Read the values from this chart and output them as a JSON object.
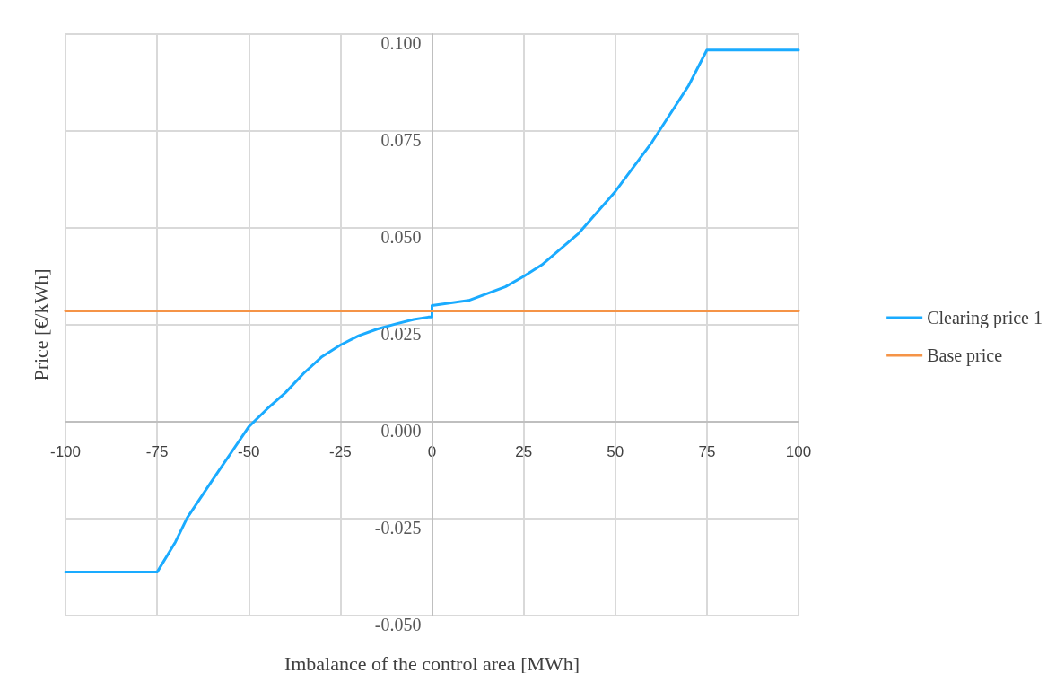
{
  "chart_data": {
    "type": "line",
    "xlabel": "Imbalance of the control area [MWh]",
    "ylabel": "Price [€/kWh]",
    "xlim": [
      -100,
      100
    ],
    "xticks": [
      -100,
      -75,
      -50,
      -25,
      0,
      25,
      50,
      75,
      100
    ],
    "ylim": [
      -0.05,
      0.1
    ],
    "yticks": [
      {
        "value": -0.05,
        "label": "-0.050"
      },
      {
        "value": -0.025,
        "label": "-0.025"
      },
      {
        "value": 0,
        "label": "0.000"
      },
      {
        "value": 0.025,
        "label": "0.025"
      },
      {
        "value": 0.05,
        "label": "0.050"
      },
      {
        "value": 0.075,
        "label": "0.075"
      },
      {
        "value": 0.1,
        "label": "0.100"
      }
    ],
    "grid": true,
    "legend": "right",
    "marker": "none",
    "line_style": "solid",
    "series": [
      {
        "name": "Clearing price 1",
        "color": "#1aabff",
        "x": [
          -100,
          -75,
          -70,
          -66.8,
          -60,
          -50,
          -45,
          -40,
          -35,
          -30,
          -25,
          -20,
          -15,
          -10,
          -5,
          -1,
          0,
          0,
          10,
          20,
          25,
          30,
          40,
          50,
          60,
          70,
          75,
          100
        ],
        "values": [
          -0.0388,
          -0.0388,
          -0.031,
          -0.0248,
          -0.0152,
          -0.0013,
          0.0033,
          0.0075,
          0.0125,
          0.0168,
          0.0198,
          0.0222,
          0.0239,
          0.0252,
          0.0264,
          0.027,
          0.027,
          0.03,
          0.0313,
          0.0348,
          0.0375,
          0.0405,
          0.0486,
          0.0594,
          0.0721,
          0.0867,
          0.0959,
          0.0959
        ]
      },
      {
        "name": "Base price",
        "color": "#f59447",
        "x": [
          -100,
          100
        ],
        "values": [
          0.0286,
          0.0286
        ]
      }
    ]
  }
}
